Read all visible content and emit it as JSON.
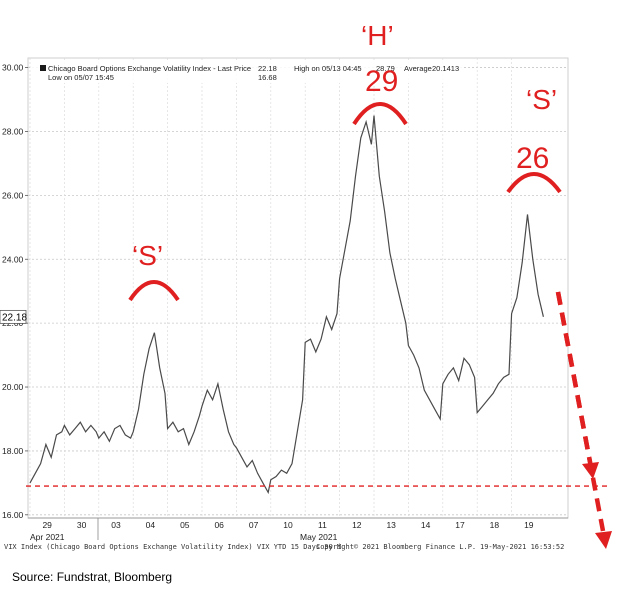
{
  "chart_data": {
    "type": "line",
    "series": [
      {
        "name": "Chicago Board Options Exchange Volatility Index - Last Price",
        "points": [
          [
            "04-29 09:30",
            17.0
          ],
          [
            "04-29 10:30",
            17.3
          ],
          [
            "04-29 11:30",
            17.6
          ],
          [
            "04-29 12:30",
            18.2
          ],
          [
            "04-29 13:30",
            17.8
          ],
          [
            "04-29 14:30",
            18.5
          ],
          [
            "04-29 15:30",
            18.6
          ],
          [
            "04-30 09:30",
            18.8
          ],
          [
            "04-30 10:30",
            18.5
          ],
          [
            "04-30 11:30",
            18.7
          ],
          [
            "04-30 12:30",
            18.9
          ],
          [
            "04-30 13:30",
            18.6
          ],
          [
            "04-30 14:30",
            18.8
          ],
          [
            "04-30 15:30",
            18.6
          ],
          [
            "05-03 09:30",
            18.4
          ],
          [
            "05-03 10:30",
            18.6
          ],
          [
            "05-03 11:30",
            18.3
          ],
          [
            "05-03 12:30",
            18.7
          ],
          [
            "05-03 13:30",
            18.8
          ],
          [
            "05-03 14:30",
            18.5
          ],
          [
            "05-03 15:30",
            18.4
          ],
          [
            "05-04 09:30",
            18.6
          ],
          [
            "05-04 10:30",
            19.3
          ],
          [
            "05-04 11:30",
            20.4
          ],
          [
            "05-04 12:30",
            21.2
          ],
          [
            "05-04 13:30",
            21.7
          ],
          [
            "05-04 14:30",
            20.6
          ],
          [
            "05-04 15:30",
            19.8
          ],
          [
            "05-05 09:30",
            18.7
          ],
          [
            "05-05 10:30",
            18.9
          ],
          [
            "05-05 11:30",
            18.6
          ],
          [
            "05-05 12:30",
            18.7
          ],
          [
            "05-05 13:30",
            18.2
          ],
          [
            "05-05 14:30",
            18.6
          ],
          [
            "05-05 15:30",
            19.1
          ],
          [
            "05-06 09:30",
            19.4
          ],
          [
            "05-06 10:30",
            19.9
          ],
          [
            "05-06 11:30",
            19.6
          ],
          [
            "05-06 12:30",
            20.1
          ],
          [
            "05-06 13:30",
            19.3
          ],
          [
            "05-06 14:30",
            18.6
          ],
          [
            "05-06 15:30",
            18.2
          ],
          [
            "05-07 09:30",
            18.1
          ],
          [
            "05-07 10:30",
            17.8
          ],
          [
            "05-07 11:30",
            17.5
          ],
          [
            "05-07 12:30",
            17.7
          ],
          [
            "05-07 13:30",
            17.3
          ],
          [
            "05-07 14:30",
            17.0
          ],
          [
            "05-07 15:30",
            16.7
          ],
          [
            "05-10 09:30",
            17.1
          ],
          [
            "05-10 10:30",
            17.2
          ],
          [
            "05-10 11:30",
            17.4
          ],
          [
            "05-10 12:30",
            17.3
          ],
          [
            "05-10 13:30",
            17.6
          ],
          [
            "05-10 14:30",
            18.6
          ],
          [
            "05-10 15:30",
            19.6
          ],
          [
            "05-11 09:30",
            21.4
          ],
          [
            "05-11 10:30",
            21.5
          ],
          [
            "05-11 11:30",
            21.1
          ],
          [
            "05-11 12:30",
            21.5
          ],
          [
            "05-11 13:30",
            22.2
          ],
          [
            "05-11 14:30",
            21.8
          ],
          [
            "05-11 15:30",
            22.3
          ],
          [
            "05-12 09:30",
            23.4
          ],
          [
            "05-12 10:30",
            24.3
          ],
          [
            "05-12 11:30",
            25.2
          ],
          [
            "05-12 12:30",
            26.6
          ],
          [
            "05-12 13:30",
            27.8
          ],
          [
            "05-12 14:30",
            28.3
          ],
          [
            "05-12 15:30",
            27.6
          ],
          [
            "05-13 09:30",
            28.5
          ],
          [
            "05-13 10:30",
            26.6
          ],
          [
            "05-13 11:30",
            25.5
          ],
          [
            "05-13 12:30",
            24.2
          ],
          [
            "05-13 13:30",
            23.4
          ],
          [
            "05-13 14:30",
            22.7
          ],
          [
            "05-13 15:30",
            22.0
          ],
          [
            "05-14 09:30",
            21.3
          ],
          [
            "05-14 10:30",
            21.0
          ],
          [
            "05-14 11:30",
            20.6
          ],
          [
            "05-14 12:30",
            19.9
          ],
          [
            "05-14 13:30",
            19.6
          ],
          [
            "05-14 14:30",
            19.3
          ],
          [
            "05-14 15:30",
            19.0
          ],
          [
            "05-17 09:30",
            20.1
          ],
          [
            "05-17 10:30",
            20.4
          ],
          [
            "05-17 11:30",
            20.6
          ],
          [
            "05-17 12:30",
            20.2
          ],
          [
            "05-17 13:30",
            20.9
          ],
          [
            "05-17 14:30",
            20.7
          ],
          [
            "05-17 15:30",
            20.3
          ],
          [
            "05-18 09:30",
            19.2
          ],
          [
            "05-18 10:30",
            19.4
          ],
          [
            "05-18 11:30",
            19.6
          ],
          [
            "05-18 12:30",
            19.8
          ],
          [
            "05-18 13:30",
            20.1
          ],
          [
            "05-18 14:30",
            20.3
          ],
          [
            "05-18 15:30",
            20.4
          ],
          [
            "05-19 09:30",
            22.3
          ],
          [
            "05-19 10:30",
            22.8
          ],
          [
            "05-19 11:30",
            23.9
          ],
          [
            "05-19 12:30",
            25.4
          ],
          [
            "05-19 13:30",
            24.0
          ],
          [
            "05-19 14:30",
            22.9
          ],
          [
            "05-19 15:30",
            22.2
          ]
        ]
      }
    ],
    "legend": {
      "label": "Chicago Board Options Exchange Volatility Index - Last Price",
      "last_value": "22.18",
      "high_label": "High on 05/13 04:45",
      "high_value": "28.79",
      "average_label": "Average",
      "average_value": "20.1413",
      "low_label": "Low on 05/07 15:45",
      "low_value": "16.68"
    },
    "ylim": [
      15.9,
      30.3
    ],
    "y_ticks": [
      16.0,
      18.0,
      20.0,
      22.0,
      24.0,
      26.0,
      28.0,
      30.0
    ],
    "y_tick_labels": [
      "16.00",
      "18.00",
      "20.00",
      "22.00",
      "24.00",
      "26.00",
      "28.00",
      "30.00"
    ],
    "last_price_tag": "22.18",
    "x_tick_labels": [
      "29",
      "30",
      "03",
      "04",
      "05",
      "06",
      "07",
      "10",
      "11",
      "12",
      "13",
      "14",
      "17",
      "18",
      "19"
    ],
    "x_month_labels": [
      "Apr 2021",
      "May 2021"
    ],
    "footer": {
      "left": "VIX Index (Chicago Board Options Exchange Volatility Index) VIX YTD 15 Days 30 M",
      "center": "Copyright© 2021 Bloomberg Finance L.P.",
      "right": "19-May-2021 16:53:52"
    },
    "annotations": [
      {
        "id": "s-left",
        "text": "‘S’",
        "peak_value": "21.70",
        "peak_date": "05-04"
      },
      {
        "id": "h-center",
        "text": "‘H’",
        "value_label": "29",
        "peak_date": "05-13"
      },
      {
        "id": "s-right",
        "text": "‘S’",
        "value_label": "26",
        "peak_date": "05-19"
      }
    ],
    "reference_line": {
      "value": 16.9,
      "style": "dashed",
      "color": "#e02020"
    },
    "projection_arrow_color": "#e02020",
    "grid": true,
    "line_color": "#4a4a4a",
    "source_text": "Source: Fundstrat, Bloomberg"
  }
}
